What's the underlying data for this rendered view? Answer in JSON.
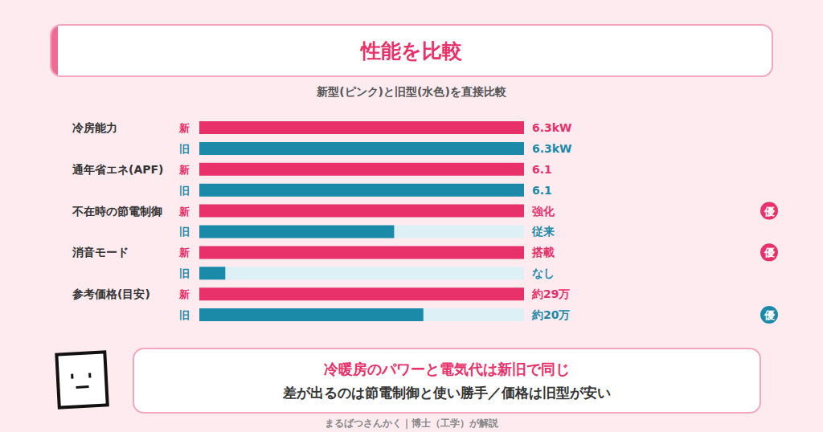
{
  "header": {
    "title": "性能を比較",
    "subtitle": "新型(ピンク)と旧型(水色)を直接比較"
  },
  "chart_data": {
    "type": "bar",
    "orientation": "horizontal",
    "categories": [
      "冷房能力",
      "通年省エネ(APF)",
      "不在時の節電制御",
      "消音モード",
      "参考価格(目安)"
    ],
    "series": [
      {
        "name": "新",
        "color": "#e8306a",
        "values": [
          100,
          100,
          100,
          100,
          100
        ],
        "annotations": [
          "6.3kW",
          "6.1",
          "強化",
          "搭載",
          "約29万"
        ],
        "badges": [
          null,
          null,
          "優",
          "優",
          null
        ]
      },
      {
        "name": "旧",
        "color": "#1b8aa8",
        "values": [
          100,
          100,
          60,
          8,
          69
        ],
        "annotations": [
          "6.3kW",
          "6.1",
          "従来",
          "なし",
          "約20万"
        ],
        "badges": [
          null,
          null,
          null,
          null,
          "優"
        ]
      }
    ],
    "xlim": [
      0,
      100
    ],
    "tick_labels": false,
    "grid": false
  },
  "comment": {
    "lines": [
      "冷暖房のパワーと電気代は新旧で同じ",
      "差が出るのは節電制御と使い勝手／価格は旧型が安い"
    ]
  },
  "footer": "まるばつさんかく｜博士（工学）が解説"
}
